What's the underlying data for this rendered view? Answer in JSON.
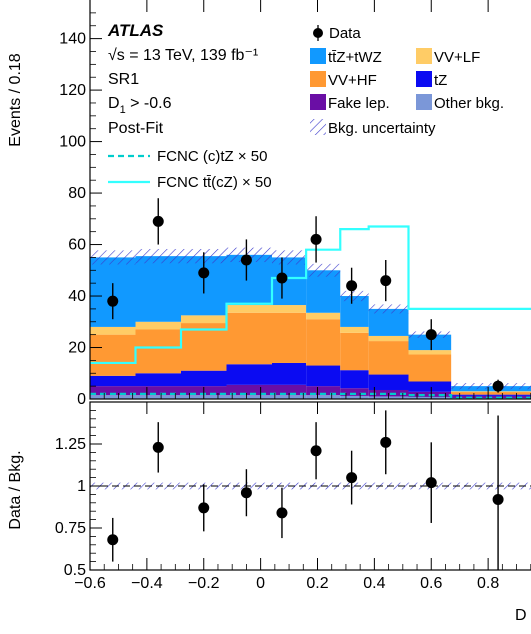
{
  "chart_data": {
    "type": "bar",
    "experiment": "ATLAS",
    "annotations": {
      "energy_lumi": "√s = 13 TeV, 139 fb⁻¹",
      "region": "SR1",
      "cut_main": "D",
      "cut_sub": "1",
      "cut_rest": " > -0.6",
      "fit": "Post-Fit"
    },
    "ylabel_top": "Events / 0.18",
    "ylabel_bottom": "Data / Bkg.",
    "xlabel": "D",
    "xlim": [
      -0.6,
      1.0
    ],
    "ylim": [
      0,
      155
    ],
    "ratio_ylim": [
      0.5,
      1.5
    ],
    "xticks": [
      "−0.6",
      "−0.4",
      "−0.2",
      "0",
      "0.2",
      "0.4",
      "0.6",
      "0.8"
    ],
    "yticks": [
      "0",
      "20",
      "40",
      "60",
      "80",
      "100",
      "120",
      "140"
    ],
    "ratio_yticks": [
      "0.5",
      "0.75",
      "1",
      "1.25"
    ],
    "bin_edges": [
      -0.6,
      -0.44,
      -0.28,
      -0.12,
      0.04,
      0.16,
      0.28,
      0.38,
      0.52,
      0.67,
      1.0
    ],
    "stack": [
      {
        "name": "Other bkg.",
        "color": "#7b97d8",
        "values": [
          1.5,
          1.5,
          1.5,
          1.5,
          1.5,
          1.5,
          1.2,
          1.0,
          0.8,
          0.4
        ]
      },
      {
        "name": "Fake lep.",
        "color": "#6a0ea5",
        "values": [
          3.5,
          3.5,
          3.5,
          4.0,
          4.0,
          3.5,
          3.0,
          2.5,
          2.0,
          0.8
        ]
      },
      {
        "name": "tZ",
        "color": "#0b0bf2",
        "values": [
          4.0,
          5.0,
          6.0,
          8.0,
          8.5,
          8.0,
          7.0,
          6.0,
          4.0,
          0.5
        ]
      },
      {
        "name": "VV+HF",
        "color": "#ff9933",
        "values": [
          16.0,
          17.0,
          18.5,
          20.0,
          19.5,
          18.0,
          14.5,
          13.0,
          10.5,
          1.0
        ]
      },
      {
        "name": "VV+LF",
        "color": "#ffcc66",
        "values": [
          3.0,
          3.0,
          3.0,
          3.0,
          3.0,
          2.5,
          2.3,
          2.0,
          1.7,
          0.3
        ]
      },
      {
        "name": "tt̄Z+tWZ",
        "color": "#1199ff",
        "values": [
          27.0,
          25.5,
          23.0,
          19.5,
          18.5,
          16.5,
          12.0,
          10.5,
          6.0,
          2.0
        ]
      }
    ],
    "uncertainty_label": "Bkg. uncertainty",
    "signals": [
      {
        "name": "FCNC (c)tZ × 50",
        "color": "#00cccc",
        "style": "dashed",
        "values": [
          2.0,
          2.0,
          2.0,
          2.0,
          2.0,
          2.0,
          2.0,
          2.0,
          1.5,
          0.5
        ]
      },
      {
        "name": "FCNC tt̄(cZ) × 50",
        "color": "#33ffff",
        "style": "solid",
        "values": [
          14.0,
          20.0,
          27.0,
          37.0,
          47.0,
          58.0,
          66.0,
          67.0,
          35.0,
          35.0
        ]
      }
    ],
    "data": {
      "name": "Data",
      "x": [
        -0.52,
        -0.36,
        -0.2,
        -0.05,
        0.075,
        0.195,
        0.32,
        0.44,
        0.6,
        0.835
      ],
      "y": [
        38,
        69,
        49,
        54,
        47,
        62,
        44,
        46,
        25,
        5
      ],
      "err": [
        7,
        9,
        8,
        8,
        8,
        9,
        7,
        8,
        6,
        2.5
      ]
    },
    "ratio": {
      "x": [
        -0.52,
        -0.36,
        -0.2,
        -0.05,
        0.075,
        0.195,
        0.32,
        0.44,
        0.6,
        0.835
      ],
      "y": [
        0.68,
        1.23,
        0.87,
        0.96,
        0.84,
        1.21,
        1.05,
        1.26,
        1.02,
        0.92
      ],
      "err": [
        0.13,
        0.15,
        0.14,
        0.14,
        0.15,
        0.17,
        0.16,
        0.19,
        0.24,
        0.5
      ]
    }
  }
}
